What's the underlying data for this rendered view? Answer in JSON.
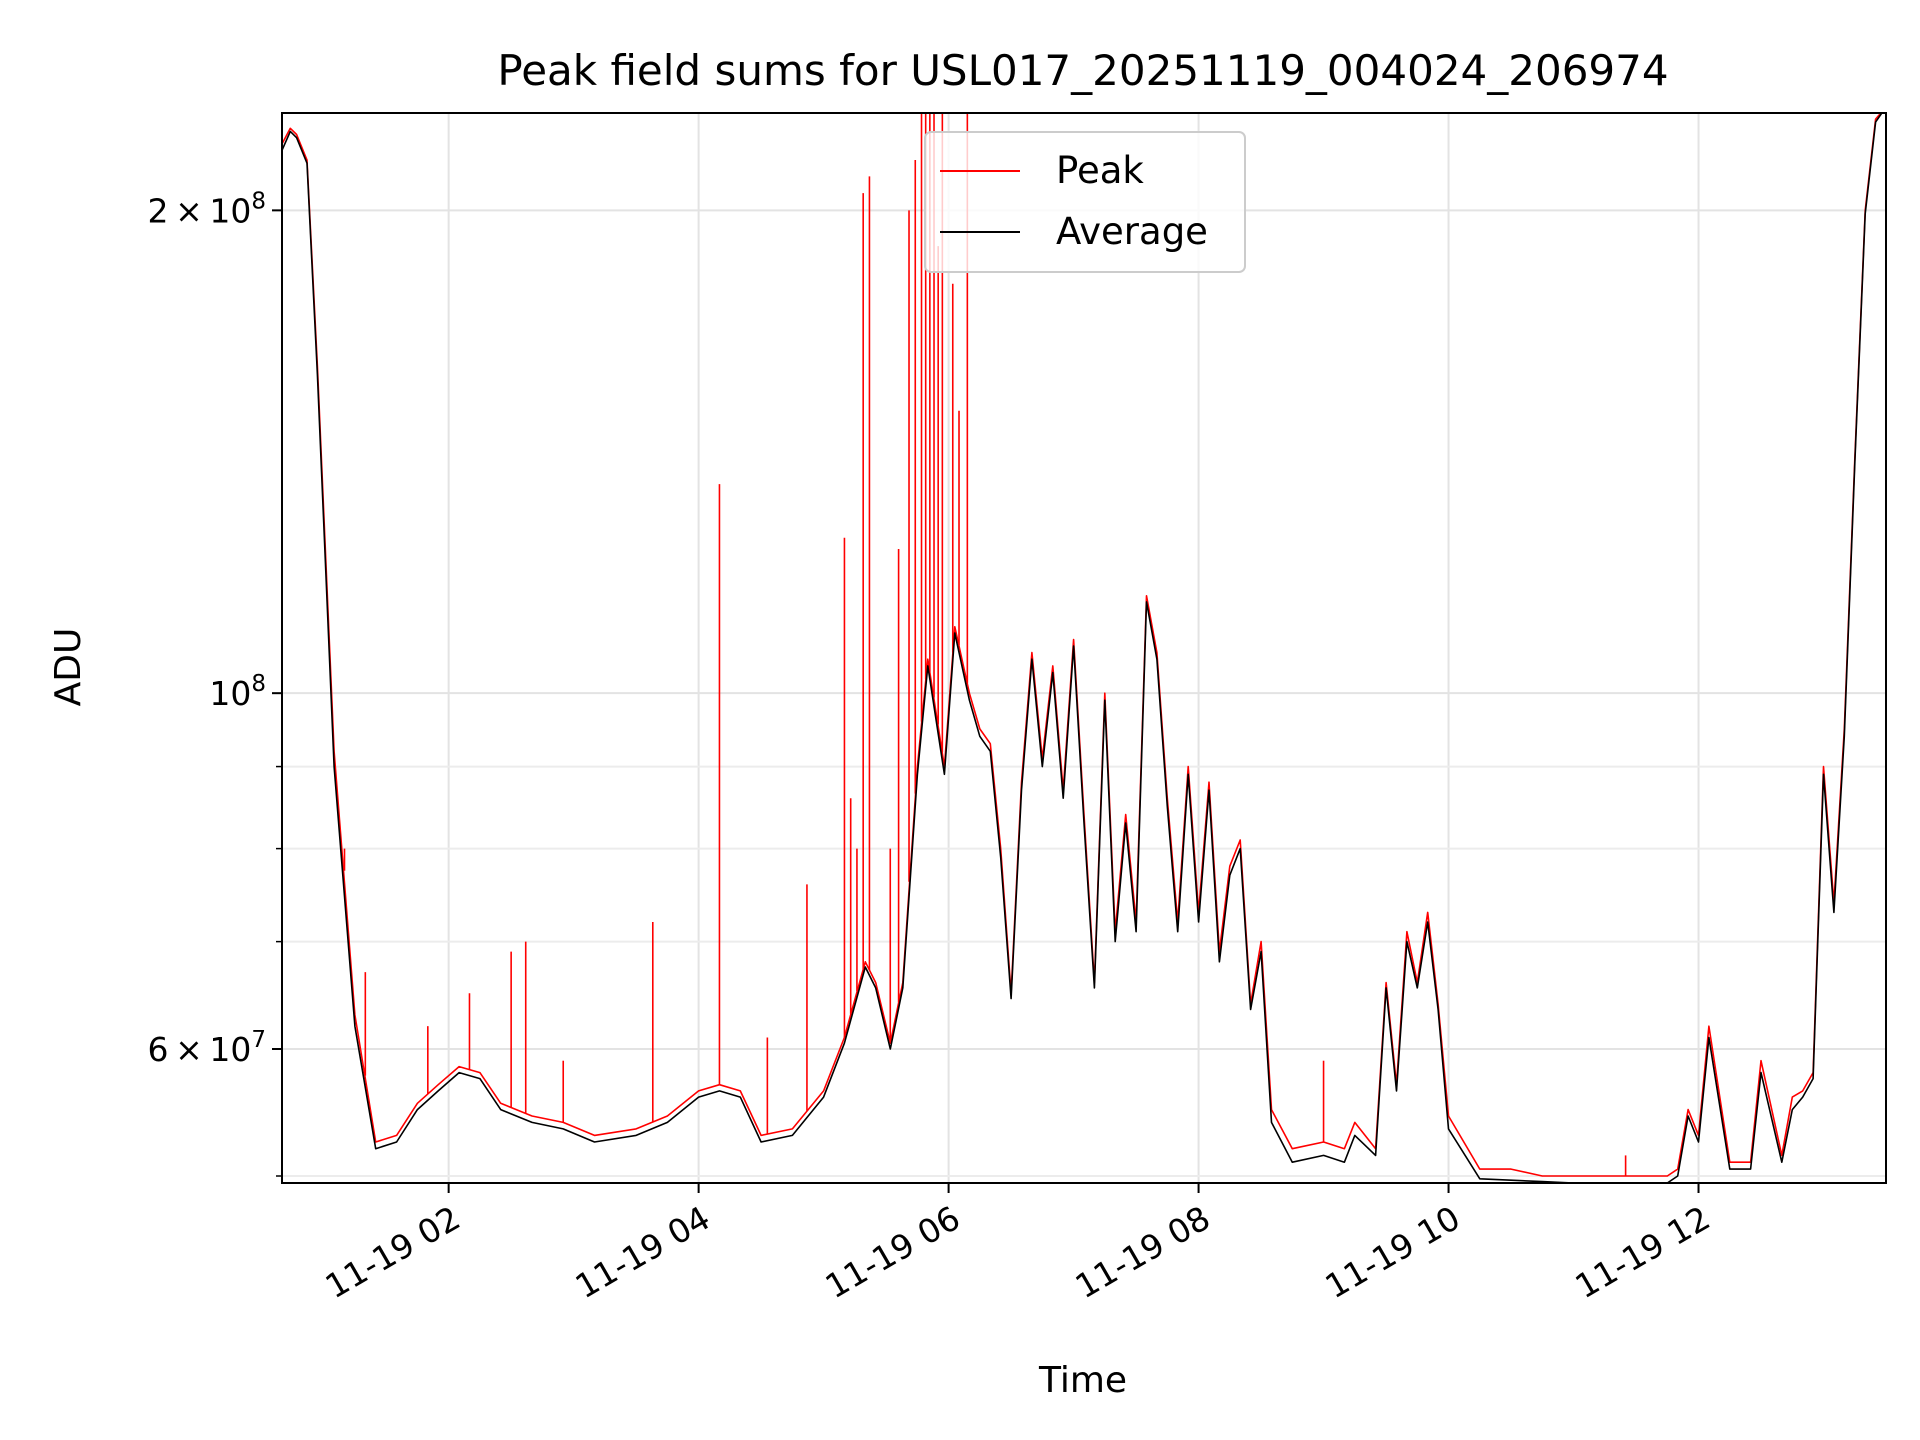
{
  "chart_data": {
    "type": "line",
    "title": "Peak field sums for USL017_20251119_004024_206974",
    "xlabel": "Time",
    "ylabel": "ADU",
    "yscale": "log",
    "xlim": [
      "2025-11-19 00:40",
      "2025-11-19 13:30"
    ],
    "ylim": [
      49500000,
      230000000
    ],
    "grid": true,
    "legend": "upper-center",
    "x_tick_labels": [
      "11-19 02",
      "11-19 04",
      "11-19 06",
      "11-19 08",
      "11-19 10",
      "11-19 12"
    ],
    "x_ticks": [
      "2025-11-19 02:00",
      "2025-11-19 04:00",
      "2025-11-19 06:00",
      "2025-11-19 08:00",
      "2025-11-19 10:00",
      "2025-11-19 12:00"
    ],
    "y_major_ticks": [
      {
        "value": 60000000,
        "mant": "6",
        "exp": "7"
      },
      {
        "value": 100000000,
        "mant": "",
        "exp": "8"
      },
      {
        "value": 200000000,
        "mant": "2",
        "exp": "8"
      }
    ],
    "y_minor_ticks": [
      50000000,
      70000000,
      80000000,
      90000000
    ],
    "series": [
      {
        "name": "Peak",
        "color": "#ff0000",
        "x": [
          "2025-11-19 00:40",
          "2025-11-19 00:44",
          "2025-11-19 00:47",
          "2025-11-19 00:52",
          "2025-11-19 00:57",
          "2025-11-19 01:05",
          "2025-11-19 01:15",
          "2025-11-19 01:25",
          "2025-11-19 01:35",
          "2025-11-19 01:45",
          "2025-11-19 01:55",
          "2025-11-19 02:05",
          "2025-11-19 02:15",
          "2025-11-19 02:25",
          "2025-11-19 02:40",
          "2025-11-19 02:55",
          "2025-11-19 03:10",
          "2025-11-19 03:30",
          "2025-11-19 03:45",
          "2025-11-19 04:00",
          "2025-11-19 04:10",
          "2025-11-19 04:20",
          "2025-11-19 04:30",
          "2025-11-19 04:45",
          "2025-11-19 05:00",
          "2025-11-19 05:10",
          "2025-11-19 05:20",
          "2025-11-19 05:25",
          "2025-11-19 05:32",
          "2025-11-19 05:38",
          "2025-11-19 05:45",
          "2025-11-19 05:50",
          "2025-11-19 05:58",
          "2025-11-19 06:03",
          "2025-11-19 06:10",
          "2025-11-19 06:15",
          "2025-11-19 06:20",
          "2025-11-19 06:25",
          "2025-11-19 06:30",
          "2025-11-19 06:35",
          "2025-11-19 06:40",
          "2025-11-19 06:45",
          "2025-11-19 06:50",
          "2025-11-19 06:55",
          "2025-11-19 07:00",
          "2025-11-19 07:05",
          "2025-11-19 07:10",
          "2025-11-19 07:15",
          "2025-11-19 07:20",
          "2025-11-19 07:25",
          "2025-11-19 07:30",
          "2025-11-19 07:35",
          "2025-11-19 07:40",
          "2025-11-19 07:45",
          "2025-11-19 07:50",
          "2025-11-19 07:55",
          "2025-11-19 08:00",
          "2025-11-19 08:05",
          "2025-11-19 08:10",
          "2025-11-19 08:15",
          "2025-11-19 08:20",
          "2025-11-19 08:25",
          "2025-11-19 08:30",
          "2025-11-19 08:35",
          "2025-11-19 08:45",
          "2025-11-19 09:00",
          "2025-11-19 09:10",
          "2025-11-19 09:15",
          "2025-11-19 09:25",
          "2025-11-19 09:30",
          "2025-11-19 09:35",
          "2025-11-19 09:40",
          "2025-11-19 09:45",
          "2025-11-19 09:50",
          "2025-11-19 09:55",
          "2025-11-19 10:00",
          "2025-11-19 10:15",
          "2025-11-19 10:30",
          "2025-11-19 10:45",
          "2025-11-19 11:00",
          "2025-11-19 11:15",
          "2025-11-19 11:30",
          "2025-11-19 11:45",
          "2025-11-19 11:50",
          "2025-11-19 11:55",
          "2025-11-19 12:00",
          "2025-11-19 12:05",
          "2025-11-19 12:15",
          "2025-11-19 12:25",
          "2025-11-19 12:30",
          "2025-11-19 12:40",
          "2025-11-19 12:45",
          "2025-11-19 12:50",
          "2025-11-19 12:55",
          "2025-11-19 13:00",
          "2025-11-19 13:05",
          "2025-11-19 13:10",
          "2025-11-19 13:15",
          "2025-11-19 13:20",
          "2025-11-19 13:25",
          "2025-11-19 13:30"
        ],
        "values": [
          220000000,
          225000000,
          223000000,
          215000000,
          160000000,
          92000000,
          63000000,
          52500000,
          53000000,
          55500000,
          57000000,
          58500000,
          58000000,
          55500000,
          54500000,
          54000000,
          53000000,
          53500000,
          54500000,
          56500000,
          57000000,
          56500000,
          53000000,
          53500000,
          56500000,
          61000000,
          68000000,
          66000000,
          60500000,
          66000000,
          90000000,
          105000000,
          90000000,
          110000000,
          100000000,
          95000000,
          93000000,
          80000000,
          65000000,
          88000000,
          106000000,
          91000000,
          104000000,
          87000000,
          108000000,
          84000000,
          66000000,
          100000000,
          71000000,
          84000000,
          72000000,
          115000000,
          106000000,
          86000000,
          72000000,
          90000000,
          73000000,
          88000000,
          69000000,
          78000000,
          81000000,
          64000000,
          70000000,
          55000000,
          52000000,
          52500000,
          52000000,
          54000000,
          52000000,
          66000000,
          57000000,
          71000000,
          66000000,
          73000000,
          64000000,
          54500000,
          50500000,
          50500000,
          50000000,
          50000000,
          50000000,
          50000000,
          50000000,
          50500000,
          55000000,
          53000000,
          62000000,
          51000000,
          51000000,
          59000000,
          51500000,
          56000000,
          56500000,
          58000000,
          90000000,
          74000000,
          95000000,
          140000000,
          200000000,
          228000000,
          232000000
        ],
        "spikes": [
          {
            "x": "2025-11-19 01:10",
            "value": 80000000
          },
          {
            "x": "2025-11-19 01:20",
            "value": 67000000
          },
          {
            "x": "2025-11-19 01:50",
            "value": 62000000
          },
          {
            "x": "2025-11-19 02:10",
            "value": 65000000
          },
          {
            "x": "2025-11-19 02:30",
            "value": 69000000
          },
          {
            "x": "2025-11-19 02:37",
            "value": 70000000
          },
          {
            "x": "2025-11-19 02:55",
            "value": 59000000
          },
          {
            "x": "2025-11-19 03:38",
            "value": 72000000
          },
          {
            "x": "2025-11-19 04:10",
            "value": 135000000
          },
          {
            "x": "2025-11-19 04:33",
            "value": 61000000
          },
          {
            "x": "2025-11-19 04:52",
            "value": 76000000
          },
          {
            "x": "2025-11-19 05:10",
            "value": 125000000
          },
          {
            "x": "2025-11-19 05:13",
            "value": 86000000
          },
          {
            "x": "2025-11-19 05:16",
            "value": 80000000
          },
          {
            "x": "2025-11-19 05:19",
            "value": 205000000
          },
          {
            "x": "2025-11-19 05:22",
            "value": 210000000
          },
          {
            "x": "2025-11-19 05:32",
            "value": 80000000
          },
          {
            "x": "2025-11-19 05:36",
            "value": 123000000
          },
          {
            "x": "2025-11-19 05:41",
            "value": 200000000
          },
          {
            "x": "2025-11-19 05:44",
            "value": 215000000
          },
          {
            "x": "2025-11-19 05:47",
            "value": 230000000
          },
          {
            "x": "2025-11-19 05:49",
            "value": 230000000
          },
          {
            "x": "2025-11-19 05:51",
            "value": 230000000
          },
          {
            "x": "2025-11-19 05:53",
            "value": 230000000
          },
          {
            "x": "2025-11-19 05:55",
            "value": 190000000
          },
          {
            "x": "2025-11-19 05:57",
            "value": 230000000
          },
          {
            "x": "2025-11-19 06:02",
            "value": 180000000
          },
          {
            "x": "2025-11-19 06:05",
            "value": 150000000
          },
          {
            "x": "2025-11-19 06:09",
            "value": 230000000
          },
          {
            "x": "2025-11-19 09:00",
            "value": 59000000
          },
          {
            "x": "2025-11-19 11:25",
            "value": 51500000
          }
        ]
      },
      {
        "name": "Average",
        "color": "#000000",
        "x": [
          "2025-11-19 00:40",
          "2025-11-19 00:44",
          "2025-11-19 00:47",
          "2025-11-19 00:52",
          "2025-11-19 00:57",
          "2025-11-19 01:05",
          "2025-11-19 01:15",
          "2025-11-19 01:25",
          "2025-11-19 01:35",
          "2025-11-19 01:45",
          "2025-11-19 01:55",
          "2025-11-19 02:05",
          "2025-11-19 02:15",
          "2025-11-19 02:25",
          "2025-11-19 02:40",
          "2025-11-19 02:55",
          "2025-11-19 03:10",
          "2025-11-19 03:30",
          "2025-11-19 03:45",
          "2025-11-19 04:00",
          "2025-11-19 04:10",
          "2025-11-19 04:20",
          "2025-11-19 04:30",
          "2025-11-19 04:45",
          "2025-11-19 05:00",
          "2025-11-19 05:10",
          "2025-11-19 05:20",
          "2025-11-19 05:25",
          "2025-11-19 05:32",
          "2025-11-19 05:38",
          "2025-11-19 05:45",
          "2025-11-19 05:50",
          "2025-11-19 05:58",
          "2025-11-19 06:03",
          "2025-11-19 06:10",
          "2025-11-19 06:15",
          "2025-11-19 06:20",
          "2025-11-19 06:25",
          "2025-11-19 06:30",
          "2025-11-19 06:35",
          "2025-11-19 06:40",
          "2025-11-19 06:45",
          "2025-11-19 06:50",
          "2025-11-19 06:55",
          "2025-11-19 07:00",
          "2025-11-19 07:05",
          "2025-11-19 07:10",
          "2025-11-19 07:15",
          "2025-11-19 07:20",
          "2025-11-19 07:25",
          "2025-11-19 07:30",
          "2025-11-19 07:35",
          "2025-11-19 07:40",
          "2025-11-19 07:45",
          "2025-11-19 07:50",
          "2025-11-19 07:55",
          "2025-11-19 08:00",
          "2025-11-19 08:05",
          "2025-11-19 08:10",
          "2025-11-19 08:15",
          "2025-11-19 08:20",
          "2025-11-19 08:25",
          "2025-11-19 08:30",
          "2025-11-19 08:35",
          "2025-11-19 08:45",
          "2025-11-19 09:00",
          "2025-11-19 09:10",
          "2025-11-19 09:15",
          "2025-11-19 09:25",
          "2025-11-19 09:30",
          "2025-11-19 09:35",
          "2025-11-19 09:40",
          "2025-11-19 09:45",
          "2025-11-19 09:50",
          "2025-11-19 09:55",
          "2025-11-19 10:00",
          "2025-11-19 10:15",
          "2025-11-19 10:30",
          "2025-11-19 10:45",
          "2025-11-19 11:00",
          "2025-11-19 11:15",
          "2025-11-19 11:30",
          "2025-11-19 11:45",
          "2025-11-19 11:50",
          "2025-11-19 11:55",
          "2025-11-19 12:00",
          "2025-11-19 12:05",
          "2025-11-19 12:15",
          "2025-11-19 12:25",
          "2025-11-19 12:30",
          "2025-11-19 12:40",
          "2025-11-19 12:45",
          "2025-11-19 12:50",
          "2025-11-19 12:55",
          "2025-11-19 13:00",
          "2025-11-19 13:05",
          "2025-11-19 13:10",
          "2025-11-19 13:15",
          "2025-11-19 13:20",
          "2025-11-19 13:25",
          "2025-11-19 13:30"
        ],
        "values": [
          218000000,
          224000000,
          222000000,
          214000000,
          158000000,
          90000000,
          62000000,
          52000000,
          52500000,
          55000000,
          56500000,
          58000000,
          57500000,
          55000000,
          54000000,
          53500000,
          52500000,
          53000000,
          54000000,
          56000000,
          56500000,
          56000000,
          52500000,
          53000000,
          56000000,
          60500000,
          67500000,
          65500000,
          60000000,
          65500000,
          89000000,
          104000000,
          89000000,
          109000000,
          99000000,
          94000000,
          92000000,
          79000000,
          64500000,
          87000000,
          105000000,
          90000000,
          103000000,
          86000000,
          107000000,
          83000000,
          65500000,
          99000000,
          70000000,
          83000000,
          71000000,
          114000000,
          105000000,
          85000000,
          71000000,
          89000000,
          72000000,
          87000000,
          68000000,
          77000000,
          80000000,
          63500000,
          69000000,
          54000000,
          51000000,
          51500000,
          51000000,
          53000000,
          51500000,
          65500000,
          56500000,
          70000000,
          65500000,
          72000000,
          63500000,
          53500000,
          49800000,
          49700000,
          49600000,
          49500000,
          49500000,
          49500000,
          49500000,
          50000000,
          54500000,
          52500000,
          61000000,
          50500000,
          50500000,
          58000000,
          51000000,
          55000000,
          56000000,
          57500000,
          89000000,
          73000000,
          94000000,
          139000000,
          199000000,
          227000000,
          232000000
        ]
      }
    ]
  }
}
